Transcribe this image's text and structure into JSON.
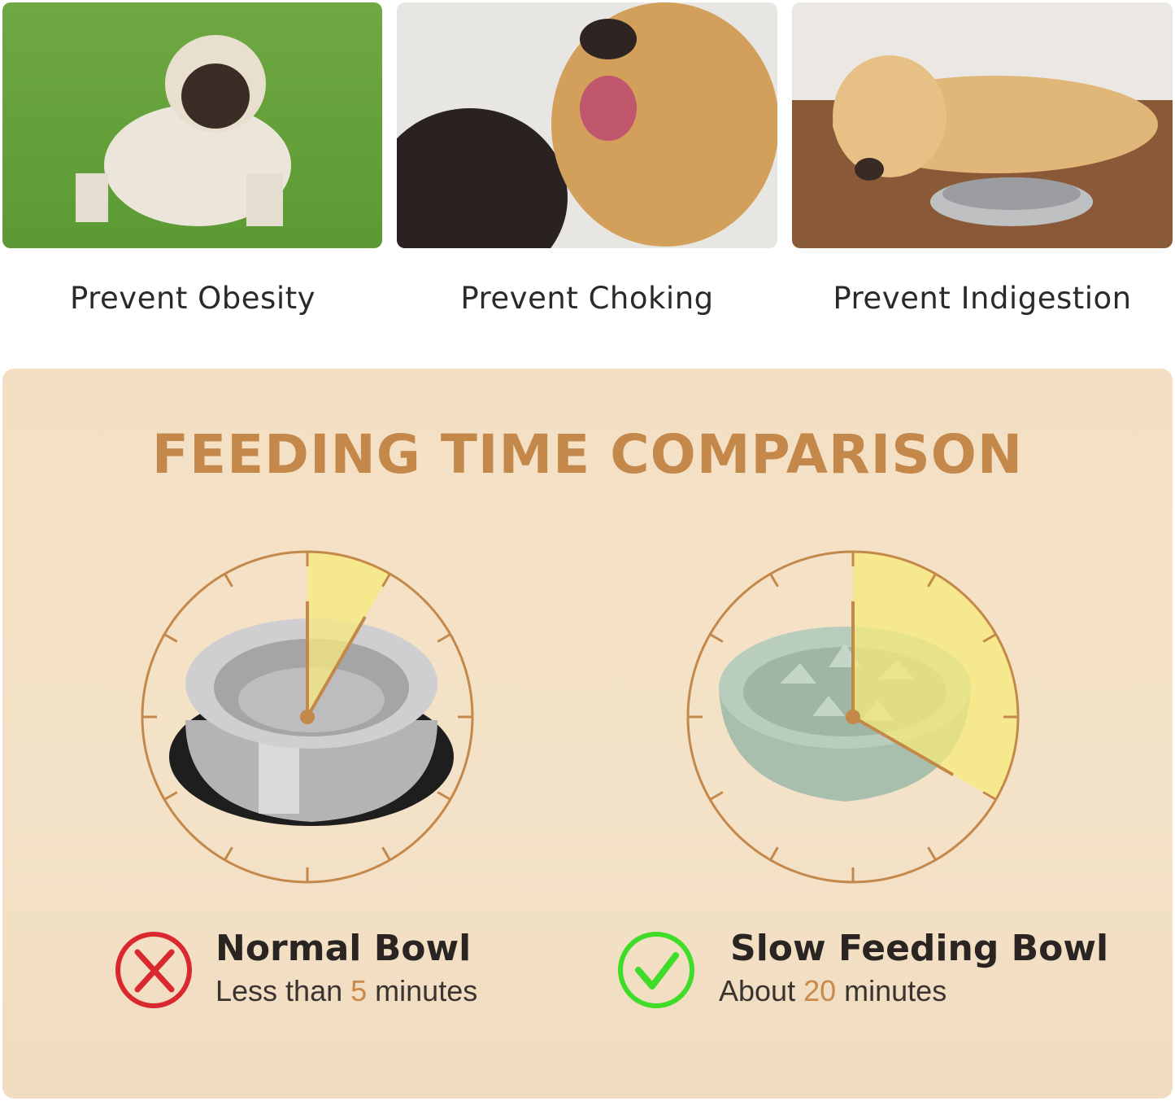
{
  "benefits": [
    {
      "caption": "Prevent Obesity",
      "image": "pug on grass"
    },
    {
      "caption": "Prevent Choking",
      "image": "golden retriever mouth open"
    },
    {
      "caption": "Prevent Indigestion",
      "image": "labrador lying by steel bowl"
    }
  ],
  "comparison": {
    "title": "FEEDING TIME COMPARISON",
    "accent_color": "#c4884a",
    "highlight_color": "#f7e97a",
    "normal": {
      "name": "Normal Bowl",
      "prefix": "Less than ",
      "minutes": "5",
      "suffix": " minutes",
      "minutes_value": 5,
      "icon": "x-icon",
      "icon_color": "#d9292e"
    },
    "slow": {
      "name": "Slow Feeding Bowl",
      "prefix": "About ",
      "minutes": "20",
      "suffix": " minutes",
      "minutes_value": 20,
      "icon": "check-icon",
      "icon_color": "#3fdc2a"
    }
  }
}
